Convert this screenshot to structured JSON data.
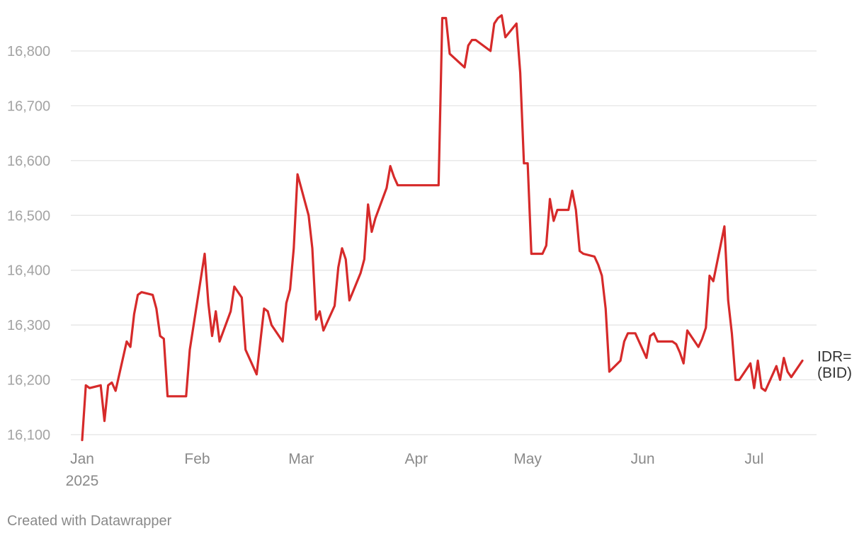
{
  "footer": {
    "credit": "Created with Datawrapper"
  },
  "chart_data": {
    "type": "line",
    "title": "",
    "xlabel": "",
    "ylabel": "",
    "ylim": [
      16090,
      16880
    ],
    "xlim": [
      "2025-01-01",
      "2025-07-20"
    ],
    "grid": true,
    "legend": "none",
    "y_ticks": [
      {
        "value": 16100,
        "label": "16,100"
      },
      {
        "value": 16200,
        "label": "16,200"
      },
      {
        "value": 16300,
        "label": "16,300"
      },
      {
        "value": 16400,
        "label": "16,400"
      },
      {
        "value": 16500,
        "label": "16,500"
      },
      {
        "value": 16600,
        "label": "16,600"
      },
      {
        "value": 16700,
        "label": "16,700"
      },
      {
        "value": 16800,
        "label": "16,800"
      }
    ],
    "x_ticks": [
      {
        "date": "2025-01-01",
        "label": "Jan",
        "sublabel": "2025"
      },
      {
        "date": "2025-02-01",
        "label": "Feb",
        "sublabel": ""
      },
      {
        "date": "2025-03-01",
        "label": "Mar",
        "sublabel": ""
      },
      {
        "date": "2025-04-01",
        "label": "Apr",
        "sublabel": ""
      },
      {
        "date": "2025-05-01",
        "label": "May",
        "sublabel": ""
      },
      {
        "date": "2025-06-01",
        "label": "Jun",
        "sublabel": ""
      },
      {
        "date": "2025-07-01",
        "label": "Jul",
        "sublabel": ""
      }
    ],
    "series": [
      {
        "name": "IDR= (BID)",
        "label_lines": [
          "IDR=",
          "(BID)"
        ],
        "color": "#d62a2a",
        "points": [
          [
            "2025-01-01",
            16090
          ],
          [
            "2025-01-02",
            16190
          ],
          [
            "2025-01-03",
            16185
          ],
          [
            "2025-01-06",
            16190
          ],
          [
            "2025-01-07",
            16125
          ],
          [
            "2025-01-08",
            16190
          ],
          [
            "2025-01-09",
            16195
          ],
          [
            "2025-01-10",
            16180
          ],
          [
            "2025-01-13",
            16270
          ],
          [
            "2025-01-14",
            16260
          ],
          [
            "2025-01-15",
            16320
          ],
          [
            "2025-01-16",
            16355
          ],
          [
            "2025-01-17",
            16360
          ],
          [
            "2025-01-20",
            16355
          ],
          [
            "2025-01-21",
            16330
          ],
          [
            "2025-01-22",
            16280
          ],
          [
            "2025-01-23",
            16275
          ],
          [
            "2025-01-24",
            16170
          ],
          [
            "2025-01-29",
            16170
          ],
          [
            "2025-01-30",
            16255
          ],
          [
            "2025-02-03",
            16430
          ],
          [
            "2025-02-04",
            16340
          ],
          [
            "2025-02-05",
            16280
          ],
          [
            "2025-02-06",
            16325
          ],
          [
            "2025-02-07",
            16270
          ],
          [
            "2025-02-10",
            16325
          ],
          [
            "2025-02-11",
            16370
          ],
          [
            "2025-02-13",
            16350
          ],
          [
            "2025-02-14",
            16255
          ],
          [
            "2025-02-17",
            16210
          ],
          [
            "2025-02-19",
            16330
          ],
          [
            "2025-02-20",
            16325
          ],
          [
            "2025-02-21",
            16300
          ],
          [
            "2025-02-24",
            16270
          ],
          [
            "2025-02-25",
            16340
          ],
          [
            "2025-02-26",
            16365
          ],
          [
            "2025-02-27",
            16440
          ],
          [
            "2025-02-28",
            16575
          ],
          [
            "2025-03-03",
            16500
          ],
          [
            "2025-03-04",
            16440
          ],
          [
            "2025-03-05",
            16310
          ],
          [
            "2025-03-06",
            16325
          ],
          [
            "2025-03-07",
            16290
          ],
          [
            "2025-03-10",
            16335
          ],
          [
            "2025-03-11",
            16405
          ],
          [
            "2025-03-12",
            16440
          ],
          [
            "2025-03-13",
            16420
          ],
          [
            "2025-03-14",
            16345
          ],
          [
            "2025-03-17",
            16395
          ],
          [
            "2025-03-18",
            16420
          ],
          [
            "2025-03-19",
            16520
          ],
          [
            "2025-03-20",
            16470
          ],
          [
            "2025-03-21",
            16495
          ],
          [
            "2025-03-24",
            16550
          ],
          [
            "2025-03-25",
            16590
          ],
          [
            "2025-03-26",
            16570
          ],
          [
            "2025-03-27",
            16555
          ],
          [
            "2025-04-07",
            16555
          ],
          [
            "2025-04-08",
            16860
          ],
          [
            "2025-04-09",
            16860
          ],
          [
            "2025-04-10",
            16795
          ],
          [
            "2025-04-14",
            16770
          ],
          [
            "2025-04-15",
            16810
          ],
          [
            "2025-04-16",
            16820
          ],
          [
            "2025-04-17",
            16820
          ],
          [
            "2025-04-21",
            16800
          ],
          [
            "2025-04-22",
            16850
          ],
          [
            "2025-04-23",
            16860
          ],
          [
            "2025-04-24",
            16865
          ],
          [
            "2025-04-25",
            16825
          ],
          [
            "2025-04-28",
            16850
          ],
          [
            "2025-04-29",
            16760
          ],
          [
            "2025-04-30",
            16595
          ],
          [
            "2025-05-01",
            16595
          ],
          [
            "2025-05-02",
            16430
          ],
          [
            "2025-05-05",
            16430
          ],
          [
            "2025-05-06",
            16445
          ],
          [
            "2025-05-07",
            16530
          ],
          [
            "2025-05-08",
            16490
          ],
          [
            "2025-05-09",
            16510
          ],
          [
            "2025-05-12",
            16510
          ],
          [
            "2025-05-13",
            16545
          ],
          [
            "2025-05-14",
            16510
          ],
          [
            "2025-05-15",
            16435
          ],
          [
            "2025-05-16",
            16430
          ],
          [
            "2025-05-19",
            16425
          ],
          [
            "2025-05-20",
            16410
          ],
          [
            "2025-05-21",
            16390
          ],
          [
            "2025-05-22",
            16330
          ],
          [
            "2025-05-23",
            16215
          ],
          [
            "2025-05-26",
            16235
          ],
          [
            "2025-05-27",
            16270
          ],
          [
            "2025-05-28",
            16285
          ],
          [
            "2025-05-30",
            16285
          ],
          [
            "2025-06-02",
            16240
          ],
          [
            "2025-06-03",
            16280
          ],
          [
            "2025-06-04",
            16285
          ],
          [
            "2025-06-05",
            16270
          ],
          [
            "2025-06-09",
            16270
          ],
          [
            "2025-06-10",
            16265
          ],
          [
            "2025-06-11",
            16250
          ],
          [
            "2025-06-12",
            16230
          ],
          [
            "2025-06-13",
            16290
          ],
          [
            "2025-06-16",
            16260
          ],
          [
            "2025-06-17",
            16275
          ],
          [
            "2025-06-18",
            16295
          ],
          [
            "2025-06-19",
            16390
          ],
          [
            "2025-06-20",
            16380
          ],
          [
            "2025-06-23",
            16480
          ],
          [
            "2025-06-24",
            16345
          ],
          [
            "2025-06-25",
            16285
          ],
          [
            "2025-06-26",
            16200
          ],
          [
            "2025-06-27",
            16200
          ],
          [
            "2025-06-30",
            16230
          ],
          [
            "2025-07-01",
            16185
          ],
          [
            "2025-07-02",
            16235
          ],
          [
            "2025-07-03",
            16185
          ],
          [
            "2025-07-04",
            16180
          ],
          [
            "2025-07-07",
            16225
          ],
          [
            "2025-07-08",
            16200
          ],
          [
            "2025-07-09",
            16240
          ],
          [
            "2025-07-10",
            16215
          ],
          [
            "2025-07-11",
            16205
          ],
          [
            "2025-07-14",
            16235
          ]
        ]
      }
    ]
  }
}
